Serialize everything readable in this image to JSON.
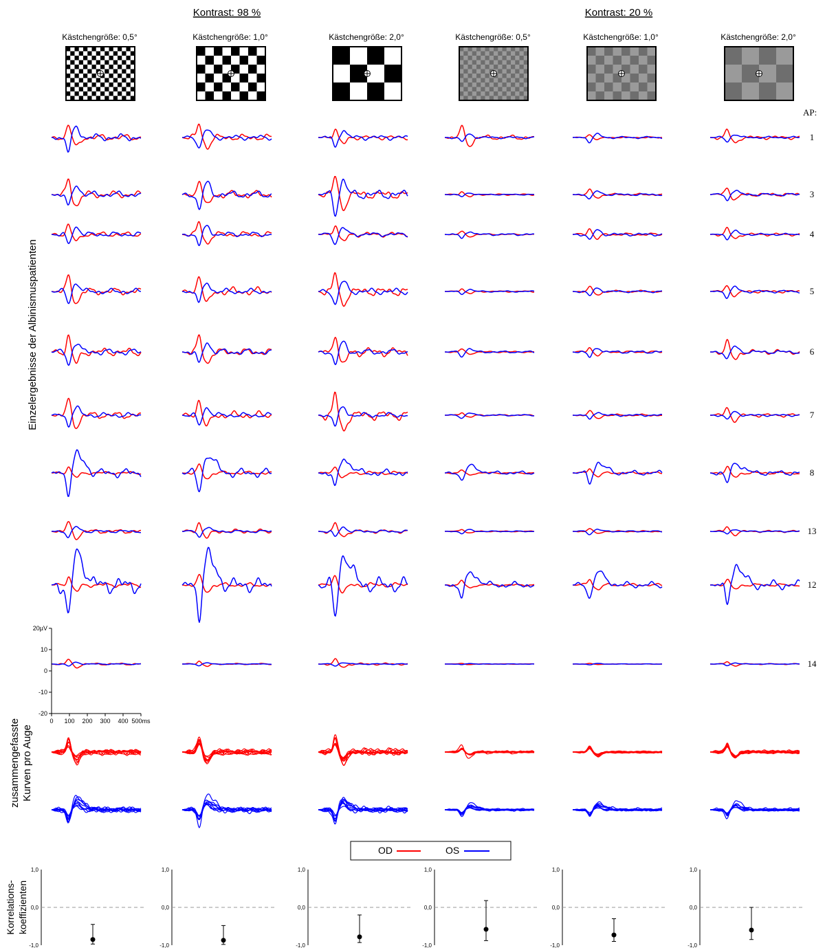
{
  "chart_data": {
    "type": "line",
    "contrast_headers": [
      "Kontrast: 98 %",
      "Kontrast: 20 %"
    ],
    "columns": [
      {
        "contrast": "98 %",
        "label": "Kästchengröße: 0,5°",
        "checks": 16,
        "light": "#ffffff",
        "dark": "#000000"
      },
      {
        "contrast": "98 %",
        "label": "Kästchengröße: 1,0°",
        "checks": 8,
        "light": "#ffffff",
        "dark": "#000000"
      },
      {
        "contrast": "98 %",
        "label": "Kästchengröße: 2,0°",
        "checks": 4,
        "light": "#ffffff",
        "dark": "#000000"
      },
      {
        "contrast": "20 %",
        "label": "Kästchengröße: 0,5°",
        "checks": 16,
        "light": "#9a9a9a",
        "dark": "#6e6e6e"
      },
      {
        "contrast": "20 %",
        "label": "Kästchengröße: 1,0°",
        "checks": 8,
        "light": "#9a9a9a",
        "dark": "#6e6e6e"
      },
      {
        "contrast": "20 %",
        "label": "Kästchengröße: 2,0°",
        "checks": 4,
        "light": "#9a9a9a",
        "dark": "#6e6e6e"
      }
    ],
    "row_header": "AP:",
    "patients": [
      "1",
      "3",
      "4",
      "5",
      "6",
      "7",
      "8",
      "13",
      "12",
      "14"
    ],
    "row_axis_label": "Einzelergebnisse der Albinismuspatienten",
    "summary_label_lines": [
      "zusammengefasste",
      "Kurven pro Auge"
    ],
    "corr_label_lines": [
      "Korrelations-",
      "koeffizienten"
    ],
    "series": [
      {
        "name": "OD",
        "color": "#ff0000"
      },
      {
        "name": "OS",
        "color": "#0000ff"
      }
    ],
    "scale_bar": {
      "y_ticks": [
        "20µV",
        "10",
        "0",
        "-10",
        "-20"
      ],
      "x_ticks": [
        "0",
        "100",
        "200",
        "300",
        "400",
        "500ms"
      ]
    },
    "correlation": {
      "ylim": [
        -1,
        1
      ],
      "y_tick_labels": [
        "1,0",
        "0,0",
        "-1,0"
      ],
      "means": [
        -0.85,
        -0.87,
        -0.78,
        -0.58,
        -0.73,
        -0.6
      ],
      "ci_low": [
        -0.97,
        -0.98,
        -0.93,
        -0.88,
        -0.9,
        -0.85
      ],
      "ci_high": [
        -0.45,
        -0.48,
        -0.2,
        0.18,
        -0.3,
        0.0
      ]
    },
    "amplitudes": {
      "OD": [
        [
          9,
          9,
          6,
          7,
          2,
          5
        ],
        [
          10,
          11,
          12,
          2,
          3,
          5
        ],
        [
          7,
          8,
          7,
          2,
          4,
          4
        ],
        [
          10,
          12,
          12,
          2,
          3,
          4
        ],
        [
          11,
          10,
          13,
          2,
          3,
          7
        ],
        [
          10,
          11,
          14,
          2,
          3,
          5
        ],
        [
          4,
          5,
          5,
          2,
          3,
          4
        ],
        [
          6,
          6,
          5,
          1.5,
          2,
          3
        ],
        [
          6,
          6,
          7,
          3,
          4,
          4
        ],
        [
          3,
          2,
          3,
          0.5,
          0.5,
          1.5
        ]
      ],
      "OS": [
        [
          10,
          7,
          7,
          3,
          3,
          3
        ],
        [
          9,
          10,
          13,
          1.5,
          3,
          4
        ],
        [
          7,
          7,
          6,
          3,
          4,
          3
        ],
        [
          8,
          8,
          9,
          2,
          3,
          4
        ],
        [
          9,
          9,
          8,
          3,
          4,
          5
        ],
        [
          7,
          7,
          7,
          2,
          3,
          3
        ],
        [
          13,
          13,
          10,
          5,
          7,
          7
        ],
        [
          4,
          4,
          4,
          1.5,
          2,
          2
        ],
        [
          23,
          21,
          22,
          9,
          9,
          14
        ],
        [
          1.5,
          1,
          1.5,
          0.5,
          0.5,
          1
        ]
      ]
    }
  }
}
